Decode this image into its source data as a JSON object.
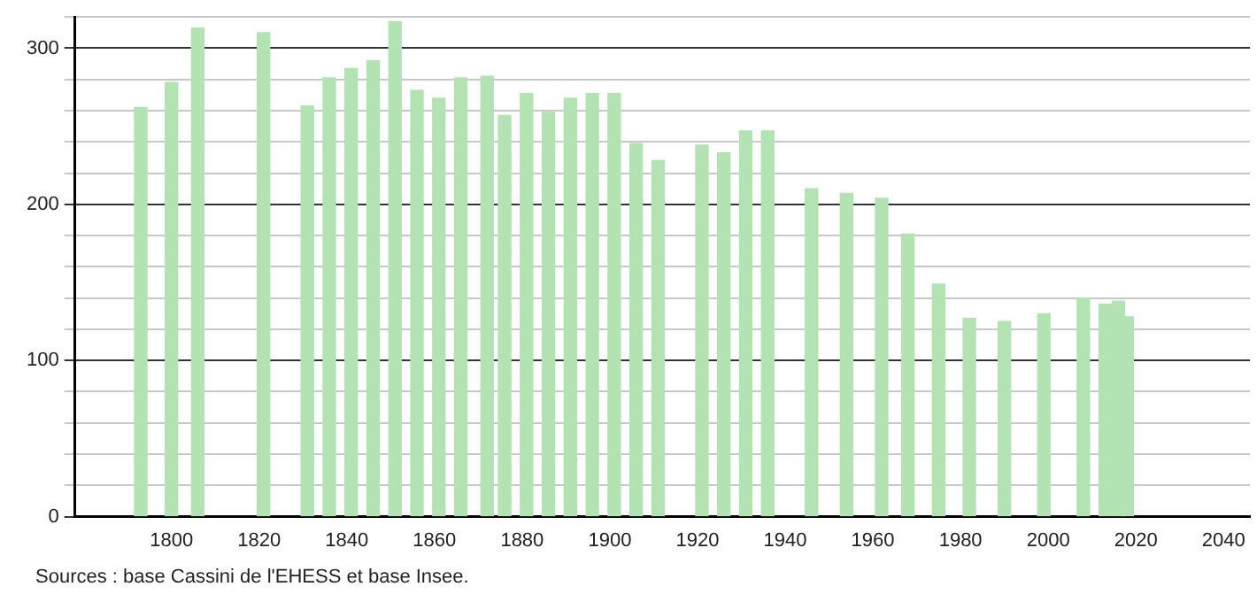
{
  "chart_data": {
    "type": "bar",
    "annotations": [
      "Sources : base Cassini de l'EHESS et base Insee."
    ],
    "x": [
      1793,
      1800,
      1806,
      1821,
      1831,
      1836,
      1841,
      1846,
      1851,
      1856,
      1861,
      1866,
      1872,
      1876,
      1881,
      1886,
      1891,
      1896,
      1901,
      1906,
      1911,
      1921,
      1926,
      1931,
      1936,
      1946,
      1954,
      1962,
      1968,
      1975,
      1982,
      1990,
      1999,
      2008,
      2013,
      2016,
      2018
    ],
    "values": [
      262,
      278,
      313,
      310,
      263,
      281,
      287,
      292,
      317,
      273,
      268,
      281,
      282,
      257,
      271,
      259,
      268,
      271,
      271,
      239,
      228,
      238,
      233,
      247,
      247,
      210,
      207,
      204,
      181,
      149,
      127,
      125,
      130,
      140,
      136,
      138,
      128
    ],
    "color": "#b3e2b3",
    "xlim": [
      1778,
      2046
    ],
    "xticks": [
      1800,
      1820,
      1840,
      1860,
      1880,
      1900,
      1920,
      1940,
      1960,
      1980,
      2000,
      2020,
      2040
    ],
    "ylim": [
      0,
      320
    ],
    "yticks": [
      0,
      {
        "value": 20,
        "label": null
      },
      {
        "value": 40,
        "label": null
      },
      {
        "value": 60,
        "label": null
      },
      {
        "value": 80,
        "label": null
      },
      100,
      {
        "value": 120,
        "label": null
      },
      {
        "value": 140,
        "label": null
      },
      {
        "value": 160,
        "label": null
      },
      {
        "value": 180,
        "label": null
      },
      200,
      {
        "value": 220,
        "label": null
      },
      {
        "value": 240,
        "label": null
      },
      {
        "value": 260,
        "label": null
      },
      {
        "value": 280,
        "label": null
      },
      300,
      {
        "value": 320,
        "label": null
      }
    ],
    "grid": "y",
    "legend": false
  }
}
